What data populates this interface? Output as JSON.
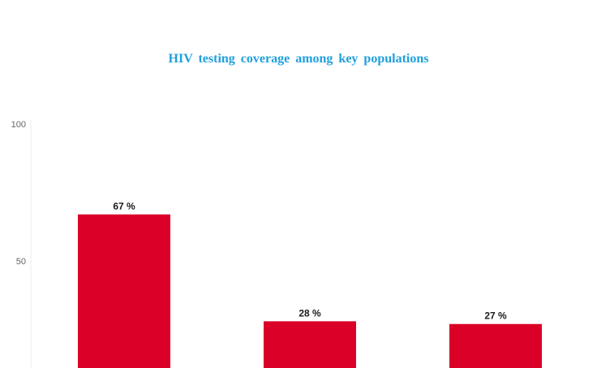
{
  "chart_data": {
    "type": "bar",
    "title": "HIV testing coverage among key populations",
    "xlabel": "",
    "ylabel": "",
    "categories": [
      "",
      "",
      ""
    ],
    "values": [
      67,
      28,
      27
    ],
    "value_labels": [
      "67 %",
      "28 %",
      "27 %"
    ],
    "y_ticks": [
      50,
      100
    ],
    "ylim": [
      0,
      100
    ],
    "grid": false,
    "legend": "none",
    "colors": {
      "bar": "#db0028",
      "title": "#1f9fdc",
      "axis": "#eeeeee"
    }
  }
}
